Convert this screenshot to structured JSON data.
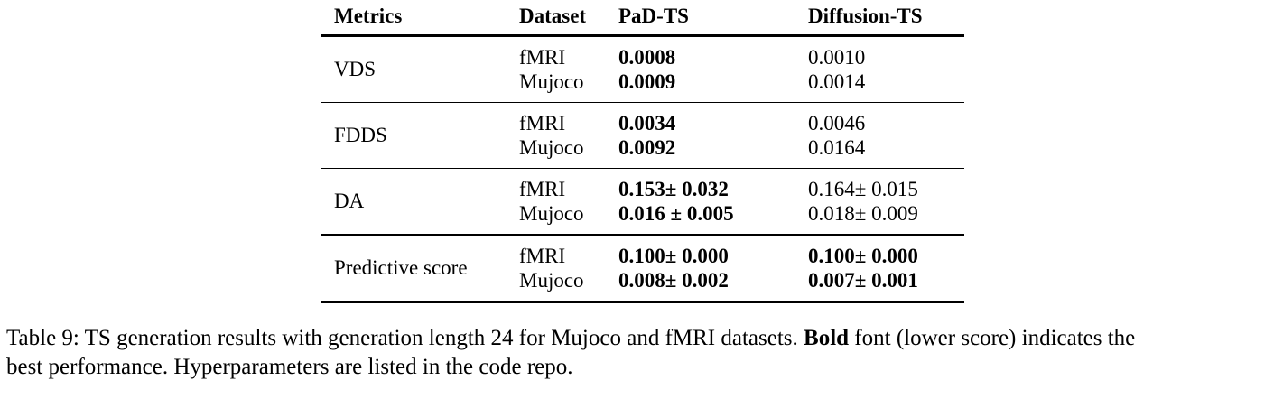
{
  "table": {
    "headers": {
      "metrics": "Metrics",
      "dataset": "Dataset",
      "pad_ts": "PaD-TS",
      "diffusion_ts": "Diffusion-TS"
    },
    "groups": [
      {
        "metric": "VDS",
        "rows": [
          {
            "dataset": "fMRI",
            "pad_ts": {
              "text": "0.0008",
              "bold": true
            },
            "diffusion_ts": {
              "text": "0.0010",
              "bold": false
            }
          },
          {
            "dataset": "Mujoco",
            "pad_ts": {
              "text": "0.0009",
              "bold": true
            },
            "diffusion_ts": {
              "text": "0.0014",
              "bold": false
            }
          }
        ]
      },
      {
        "metric": "FDDS",
        "rows": [
          {
            "dataset": "fMRI",
            "pad_ts": {
              "text": "0.0034",
              "bold": true
            },
            "diffusion_ts": {
              "text": "0.0046",
              "bold": false
            }
          },
          {
            "dataset": "Mujoco",
            "pad_ts": {
              "text": "0.0092",
              "bold": true
            },
            "diffusion_ts": {
              "text": "0.0164",
              "bold": false
            }
          }
        ]
      },
      {
        "metric": "DA",
        "rows": [
          {
            "dataset": "fMRI",
            "pad_ts": {
              "text": "0.153± 0.032",
              "bold": true
            },
            "diffusion_ts": {
              "text": "0.164± 0.015",
              "bold": false
            }
          },
          {
            "dataset": "Mujoco",
            "pad_ts": {
              "text": "0.016 ± 0.005",
              "bold": true
            },
            "diffusion_ts": {
              "text": "0.018± 0.009",
              "bold": false
            }
          }
        ]
      },
      {
        "metric": "Predictive score",
        "rows": [
          {
            "dataset": "fMRI",
            "pad_ts": {
              "text": "0.100± 0.000",
              "bold": true
            },
            "diffusion_ts": {
              "text": "0.100± 0.000",
              "bold": true
            }
          },
          {
            "dataset": "Mujoco",
            "pad_ts": {
              "text": "0.008± 0.002",
              "bold": true
            },
            "diffusion_ts": {
              "text": "0.007± 0.001",
              "bold": true
            }
          }
        ]
      }
    ]
  },
  "caption": {
    "line1_prefix": "Table 9: TS generation results with generation length 24 for Mujoco and fMRI datasets. ",
    "bold_word": "Bold",
    "line1_suffix": " font (lower score) indicates the",
    "line2": "best performance. Hyperparameters are listed in the code repo."
  }
}
